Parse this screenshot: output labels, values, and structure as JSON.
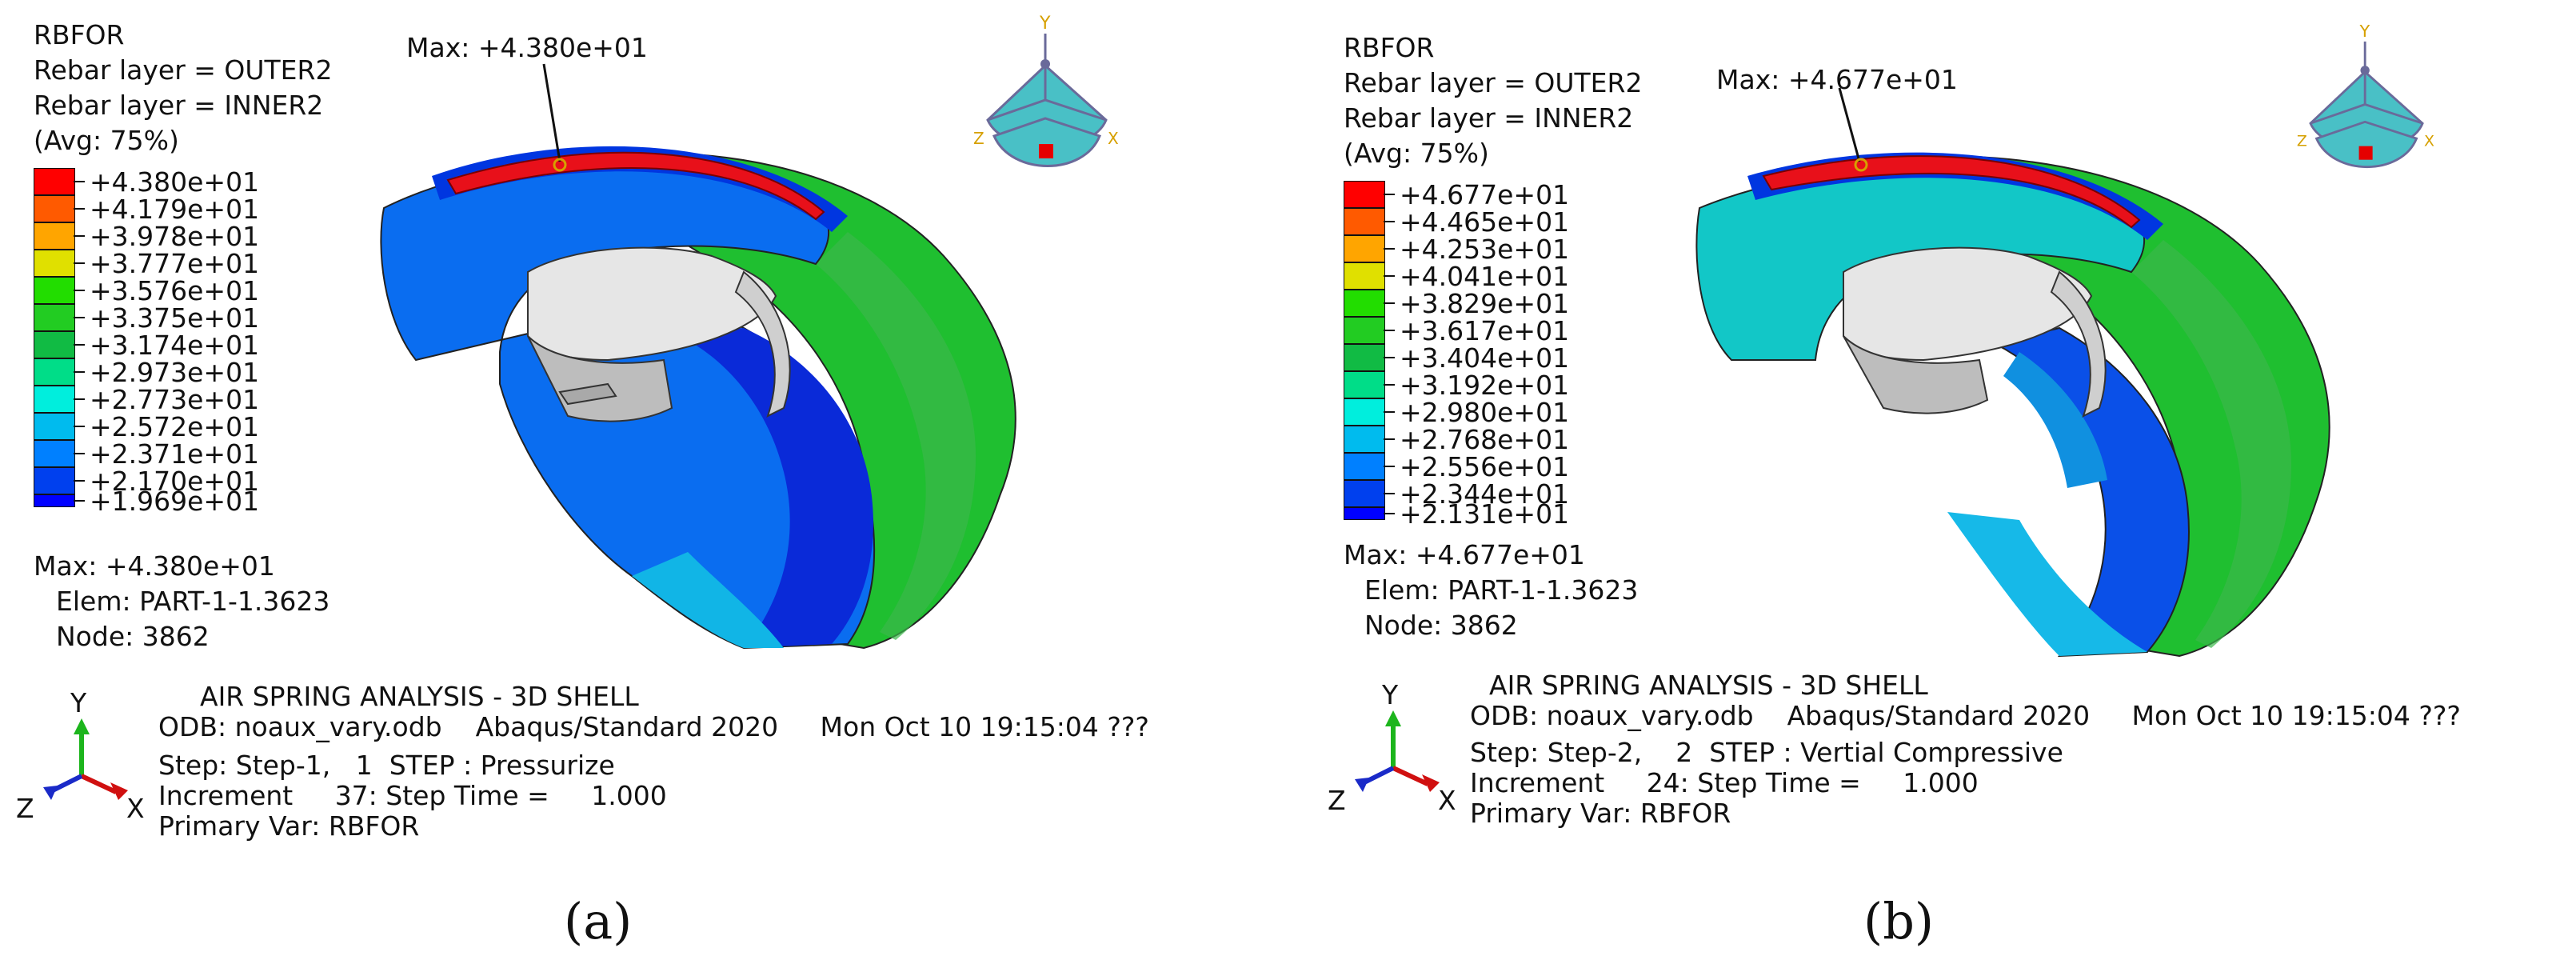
{
  "panel_a": {
    "var_title": "RBFOR",
    "rebar_outer": "Rebar layer = OUTER2",
    "rebar_inner": "Rebar layer = INNER2",
    "avg": "(Avg: 75%)",
    "legend_levels": [
      "+4.380e+01",
      "+4.179e+01",
      "+3.978e+01",
      "+3.777e+01",
      "+3.576e+01",
      "+3.375e+01",
      "+3.174e+01",
      "+2.973e+01",
      "+2.773e+01",
      "+2.572e+01",
      "+2.371e+01",
      "+2.170e+01",
      "+1.969e+01"
    ],
    "max_summary": "Max: +4.380e+01",
    "elem": "Elem: PART-1-1.3623",
    "node": "Node: 3862",
    "max_callout": "Max: +4.380e+01",
    "analysis_title": "AIR SPRING ANALYSIS - 3D SHELL",
    "odb": "ODB: noaux_vary.odb    Abaqus/Standard 2020     Mon Oct 10 19:15:04 ???",
    "step": "Step: Step-1,   1  STEP : Pressurize",
    "increment": "Increment     37: Step Time =     1.000",
    "primary_var": "Primary Var: RBFOR",
    "triad": {
      "y": "Y",
      "z": "Z",
      "x": "X"
    },
    "cube": {
      "y": "Y",
      "z": "Z",
      "x": "X"
    },
    "caption": "(a)"
  },
  "panel_b": {
    "var_title": "RBFOR",
    "rebar_outer": "Rebar layer = OUTER2",
    "rebar_inner": "Rebar layer = INNER2",
    "avg": "(Avg: 75%)",
    "legend_levels": [
      "+4.677e+01",
      "+4.465e+01",
      "+4.253e+01",
      "+4.041e+01",
      "+3.829e+01",
      "+3.617e+01",
      "+3.404e+01",
      "+3.192e+01",
      "+2.980e+01",
      "+2.768e+01",
      "+2.556e+01",
      "+2.344e+01",
      "+2.131e+01"
    ],
    "max_summary": "Max: +4.677e+01",
    "elem": "Elem: PART-1-1.3623",
    "node": "Node: 3862",
    "max_callout": "Max: +4.677e+01",
    "analysis_title": "AIR SPRING ANALYSIS - 3D SHELL",
    "odb": "ODB: noaux_vary.odb    Abaqus/Standard 2020     Mon Oct 10 19:15:04 ???",
    "step": "Step: Step-2,    2  STEP : Vertial Compressive",
    "increment": "Increment     24: Step Time =     1.000",
    "primary_var": "Primary Var: RBFOR",
    "triad": {
      "y": "Y",
      "z": "Z",
      "x": "X"
    },
    "cube": {
      "y": "Y",
      "z": "Z",
      "x": "X"
    },
    "caption": "(b)"
  },
  "legend_colors": [
    "#ff0000",
    "#ff5a00",
    "#ffa500",
    "#e0e000",
    "#22dd00",
    "#22cc22",
    "#11bb44",
    "#00dd88",
    "#00eedd",
    "#00bbee",
    "#0080ff",
    "#0040ee",
    "#0000ff"
  ]
}
